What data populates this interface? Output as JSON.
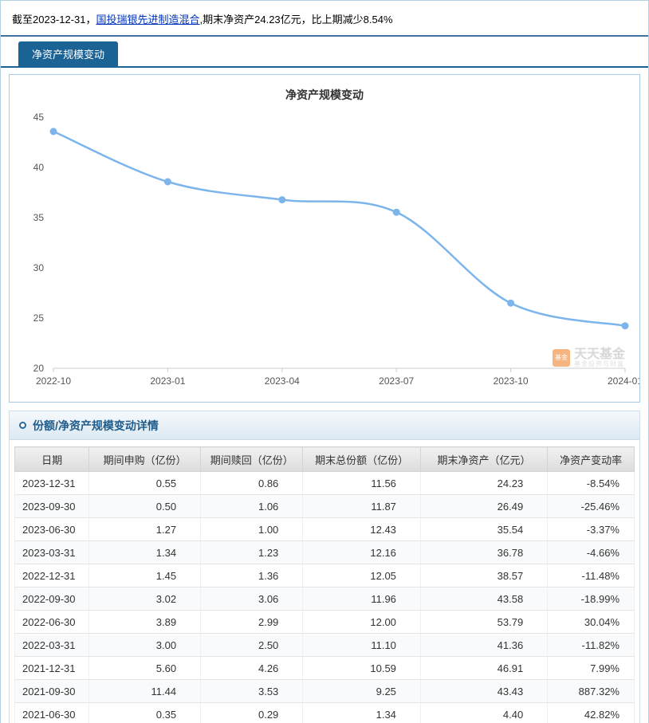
{
  "top_bar": {
    "prefix": "截至2023-12-31，",
    "fund_link": "国投瑞银先进制造混合",
    "suffix": ",期末净资产24.23亿元，比上期减少8.54%"
  },
  "tabs": {
    "scale_tab_label": "净资产规模变动"
  },
  "chart_data": {
    "type": "line",
    "title": "净资产规模变动",
    "x": [
      "2022-10",
      "2023-01",
      "2023-04",
      "2023-07",
      "2023-10",
      "2024-01"
    ],
    "series": [
      {
        "name": "期末净资产（亿元）",
        "values": [
          43.58,
          38.57,
          36.78,
          35.54,
          26.49,
          24.23
        ]
      }
    ],
    "xlabel": "",
    "ylabel": "",
    "ylim": [
      20,
      45
    ],
    "yticks": [
      20,
      25,
      30,
      35,
      40,
      45
    ],
    "grid": false,
    "legend_position": "none",
    "line_color": "#7cb5ec",
    "smooth": true
  },
  "watermark": {
    "logo_text": "天天\n基金",
    "brand": "天天基金",
    "slogan": "基金投资与财富"
  },
  "details": {
    "section_title": "份额/净资产规模变动详情"
  },
  "table": {
    "headers": [
      "日期",
      "期间申购（亿份）",
      "期间赎回（亿份）",
      "期末总份额（亿份）",
      "期末净资产（亿元）",
      "净资产变动率"
    ],
    "rows": [
      [
        "2023-12-31",
        "0.55",
        "0.86",
        "11.56",
        "24.23",
        "-8.54%"
      ],
      [
        "2023-09-30",
        "0.50",
        "1.06",
        "11.87",
        "26.49",
        "-25.46%"
      ],
      [
        "2023-06-30",
        "1.27",
        "1.00",
        "12.43",
        "35.54",
        "-3.37%"
      ],
      [
        "2023-03-31",
        "1.34",
        "1.23",
        "12.16",
        "36.78",
        "-4.66%"
      ],
      [
        "2022-12-31",
        "1.45",
        "1.36",
        "12.05",
        "38.57",
        "-11.48%"
      ],
      [
        "2022-09-30",
        "3.02",
        "3.06",
        "11.96",
        "43.58",
        "-18.99%"
      ],
      [
        "2022-06-30",
        "3.89",
        "2.99",
        "12.00",
        "53.79",
        "30.04%"
      ],
      [
        "2022-03-31",
        "3.00",
        "2.50",
        "11.10",
        "41.36",
        "-11.82%"
      ],
      [
        "2021-12-31",
        "5.60",
        "4.26",
        "10.59",
        "46.91",
        "7.99%"
      ],
      [
        "2021-09-30",
        "11.44",
        "3.53",
        "9.25",
        "43.43",
        "887.32%"
      ],
      [
        "2021-06-30",
        "0.35",
        "0.29",
        "1.34",
        "4.40",
        "42.82%"
      ]
    ]
  }
}
